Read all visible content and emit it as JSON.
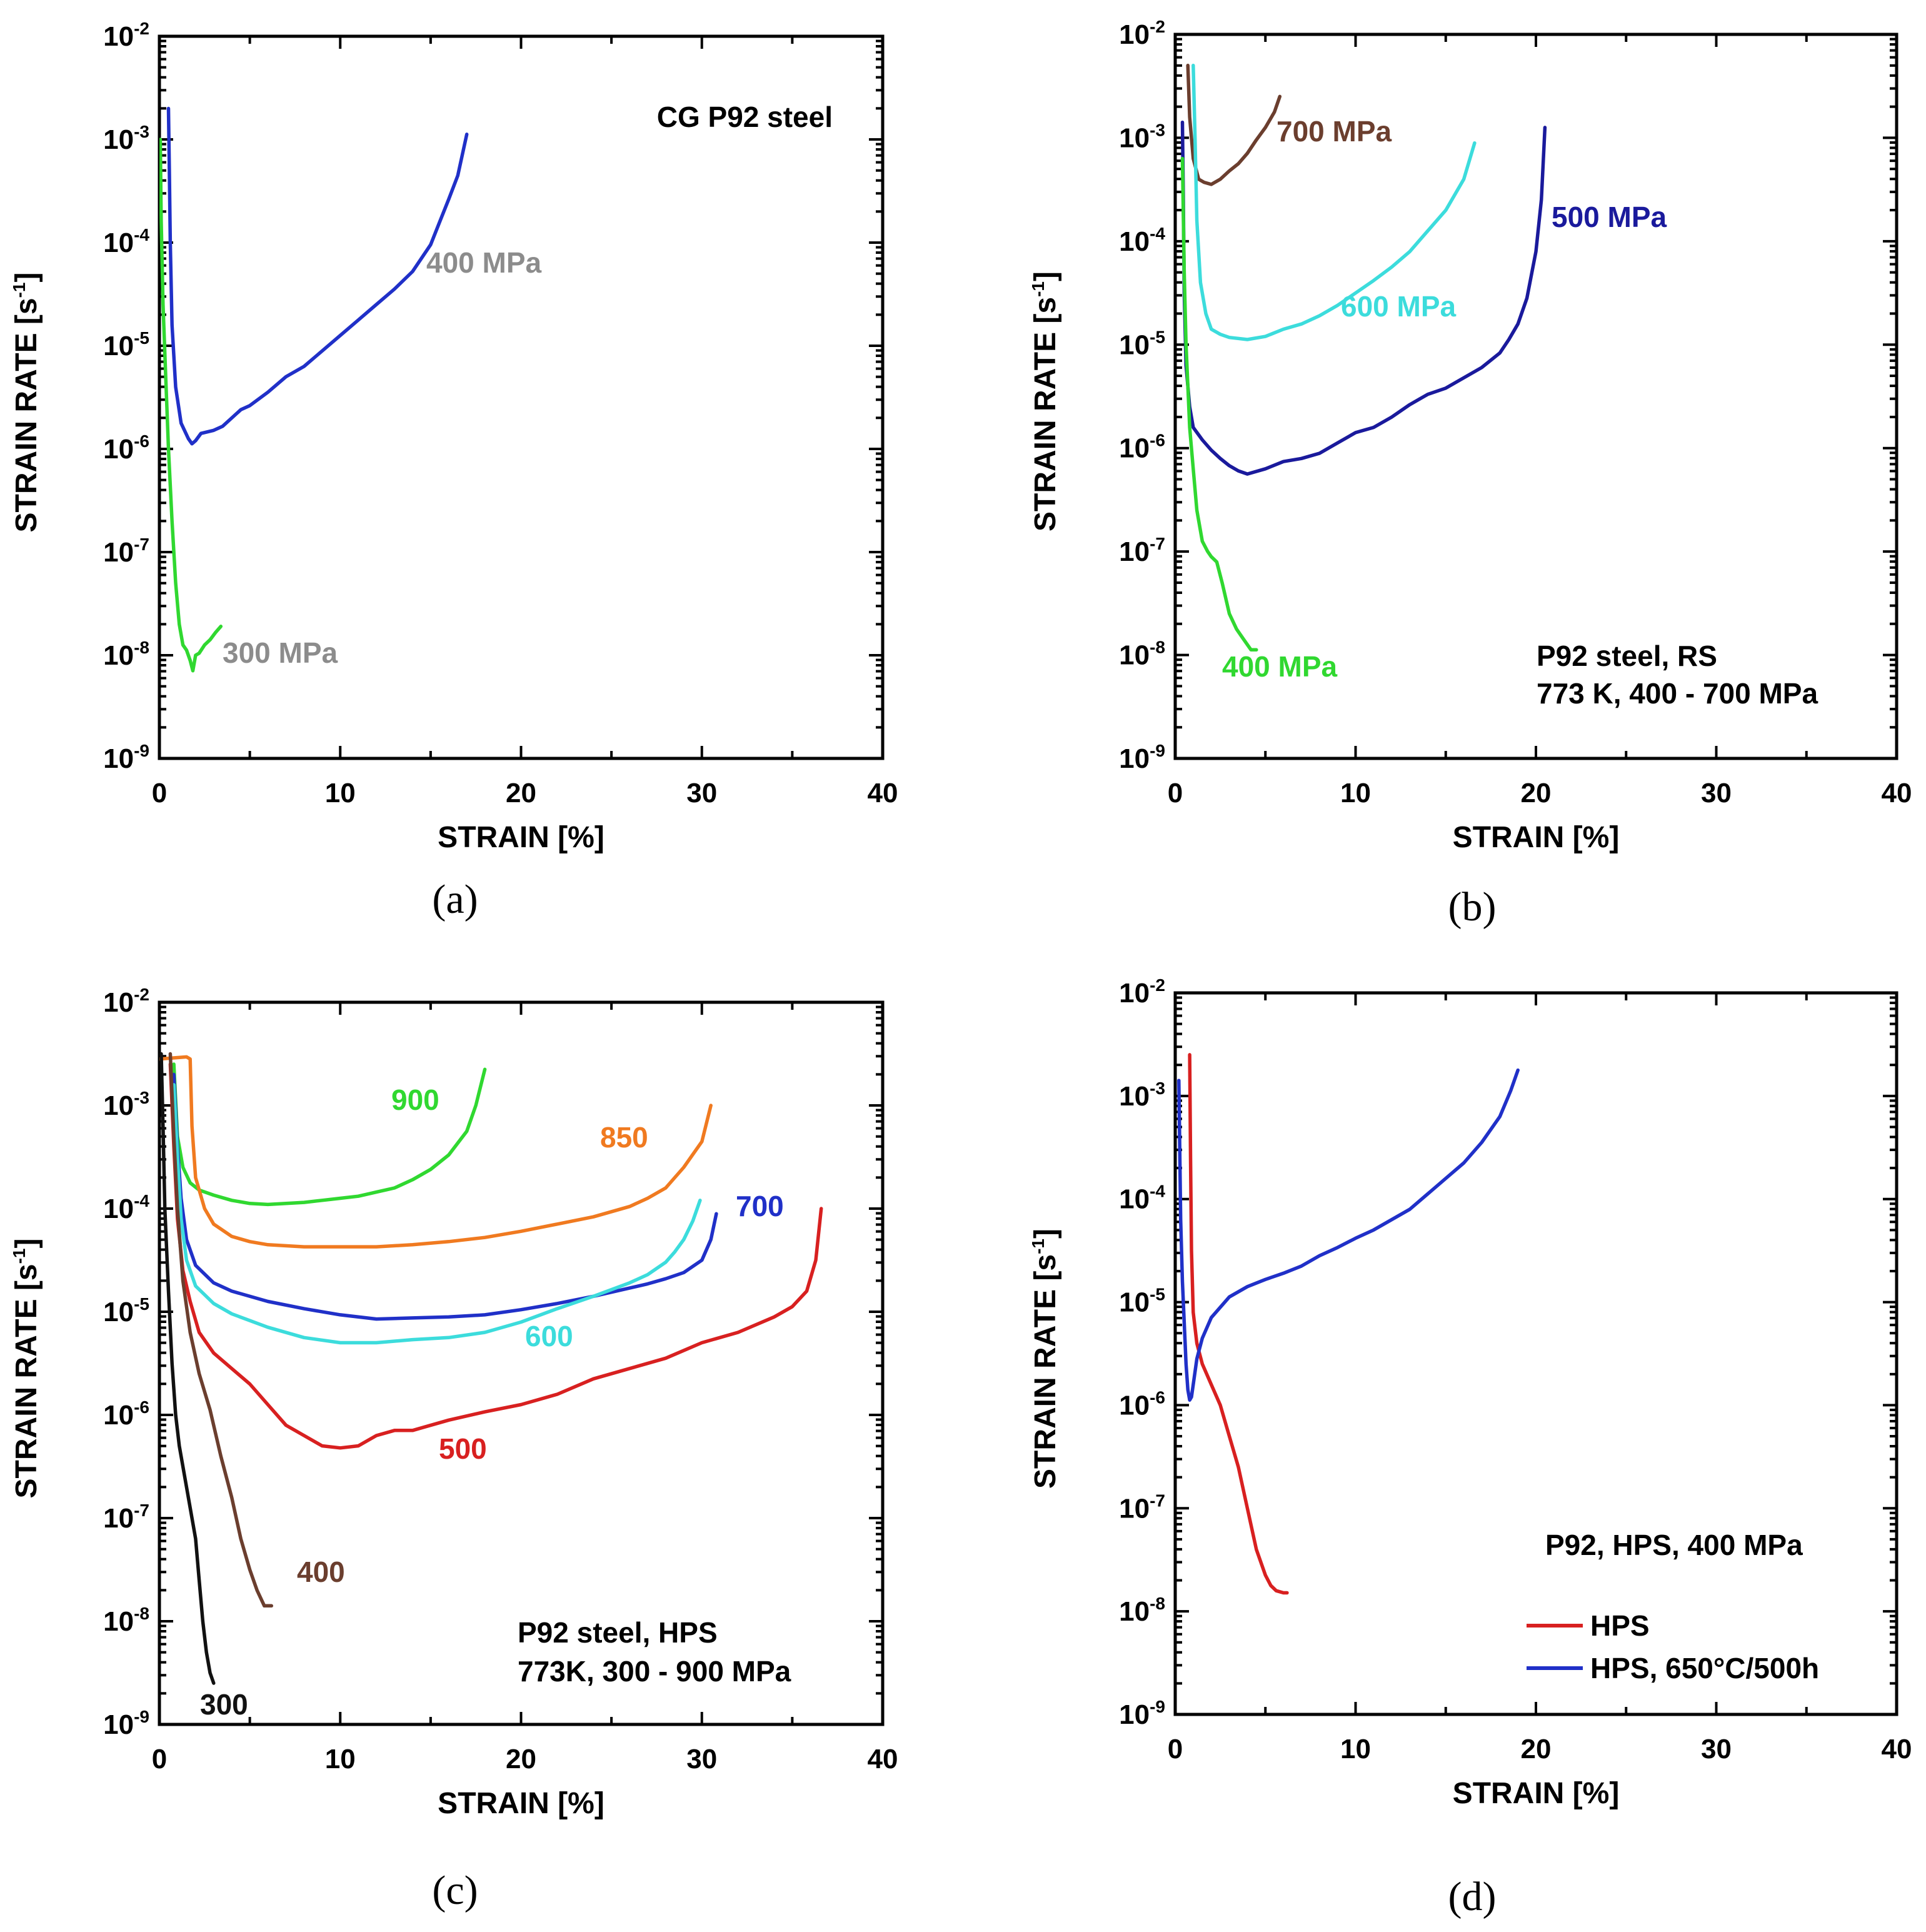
{
  "chart_data": [
    {
      "type": "line",
      "panel_label": "(a)",
      "xlabel": "STRAIN [%]",
      "ylabel_main": "STRAIN RATE [s",
      "ylabel_exp": "-1",
      "ylabel_end": "]",
      "xlim": [
        0,
        40
      ],
      "ylim_log10": [
        -9,
        -2
      ],
      "xticks": [
        0,
        10,
        20,
        30,
        40
      ],
      "yticks_log10": [
        -9,
        -8,
        -7,
        -6,
        -5,
        -4,
        -3,
        -2
      ],
      "y_tick_labels": [
        "10",
        "10",
        "10",
        "10",
        "10",
        "10",
        "10",
        "10"
      ],
      "y_tick_exponents": [
        "-9",
        "-8",
        "-7",
        "-6",
        "-5",
        "-4",
        "-3",
        "-2"
      ],
      "annotation": [
        "CG P92 steel"
      ],
      "series": [
        {
          "name": "400 MPa",
          "color": "#2030c8",
          "label": "400 MPa",
          "label_color": "#8c8c8c",
          "x": [
            0.5,
            0.55,
            0.6,
            0.7,
            0.9,
            1.2,
            1.6,
            1.8,
            2.0,
            2.3,
            3.0,
            3.5,
            4.0,
            4.5,
            5.0,
            6.0,
            7.0,
            8.0,
            9.0,
            10.0,
            11.0,
            12.0,
            13.0,
            14.0,
            15.0,
            15.5,
            16.0,
            16.5,
            17.0
          ],
          "log10y": [
            -2.7,
            -3.3,
            -4.0,
            -4.8,
            -5.4,
            -5.75,
            -5.9,
            -5.95,
            -5.92,
            -5.85,
            -5.82,
            -5.78,
            -5.7,
            -5.62,
            -5.58,
            -5.45,
            -5.3,
            -5.2,
            -5.05,
            -4.9,
            -4.75,
            -4.6,
            -4.45,
            -4.28,
            -4.02,
            -3.8,
            -3.58,
            -3.35,
            -2.95
          ]
        },
        {
          "name": "300 MPa",
          "color": "#30d830",
          "label": "300 MPa",
          "label_color": "#8c8c8c",
          "x": [
            0.05,
            0.1,
            0.2,
            0.35,
            0.5,
            0.7,
            0.9,
            1.1,
            1.3,
            1.5,
            1.7,
            1.85,
            2.0,
            2.2,
            2.5,
            2.8,
            3.1,
            3.4
          ],
          "log10y": [
            -3.0,
            -3.8,
            -4.6,
            -5.3,
            -6.0,
            -6.7,
            -7.3,
            -7.7,
            -7.9,
            -7.95,
            -8.05,
            -8.15,
            -8.0,
            -7.98,
            -7.9,
            -7.85,
            -7.78,
            -7.72
          ]
        }
      ]
    },
    {
      "type": "line",
      "panel_label": "(b)",
      "xlabel": "STRAIN [%]",
      "ylabel_main": "STRAIN RATE [s",
      "ylabel_exp": "-1",
      "ylabel_end": "]",
      "xlim": [
        0,
        40
      ],
      "ylim_log10": [
        -9,
        -2
      ],
      "xticks": [
        0,
        10,
        20,
        30,
        40
      ],
      "yticks_log10": [
        -9,
        -8,
        -7,
        -6,
        -5,
        -4,
        -3,
        -2
      ],
      "y_tick_labels": [
        "10",
        "10",
        "10",
        "10",
        "10",
        "10",
        "10",
        "10"
      ],
      "y_tick_exponents": [
        "-9",
        "-8",
        "-7",
        "-6",
        "-5",
        "-4",
        "-3",
        "-2"
      ],
      "annotation": [
        "P92 steel, RS",
        "773 K, 400 - 700 MPa"
      ],
      "series": [
        {
          "name": "700 MPa",
          "color": "#6b3e2e",
          "label": "700 MPa",
          "label_color": "#6b3e2e",
          "x": [
            0.7,
            0.8,
            1.0,
            1.3,
            1.6,
            2.0,
            2.5,
            3.0,
            3.5,
            4.0,
            4.5,
            5.0,
            5.5,
            5.8
          ],
          "log10y": [
            -2.3,
            -2.8,
            -3.2,
            -3.4,
            -3.43,
            -3.45,
            -3.4,
            -3.32,
            -3.25,
            -3.15,
            -3.02,
            -2.9,
            -2.75,
            -2.6
          ]
        },
        {
          "name": "600 MPa",
          "color": "#3cdcdc",
          "label": "600 MPa",
          "label_color": "#3cdcdc",
          "x": [
            1.0,
            1.1,
            1.2,
            1.4,
            1.7,
            2.0,
            2.5,
            3.0,
            4.0,
            5.0,
            6.0,
            7.0,
            8.0,
            9.0,
            10.0,
            11.0,
            12.0,
            13.0,
            14.0,
            15.0,
            16.0,
            16.6
          ],
          "log10y": [
            -2.3,
            -3.0,
            -3.8,
            -4.4,
            -4.7,
            -4.85,
            -4.9,
            -4.93,
            -4.95,
            -4.92,
            -4.85,
            -4.8,
            -4.72,
            -4.62,
            -4.5,
            -4.38,
            -4.25,
            -4.1,
            -3.9,
            -3.7,
            -3.4,
            -3.05
          ]
        },
        {
          "name": "500 MPa",
          "color": "#1a1a9c",
          "label": "500 MPa",
          "label_color": "#1a1a9c",
          "x": [
            0.4,
            0.45,
            0.5,
            0.6,
            0.8,
            1.0,
            1.5,
            2.0,
            2.5,
            3.0,
            3.5,
            4.0,
            5.0,
            6.0,
            7.0,
            8.0,
            9.0,
            10.0,
            11.0,
            12.0,
            13.0,
            14.0,
            15.0,
            16.0,
            17.0,
            18.0,
            18.5,
            19.0,
            19.5,
            20.0,
            20.3,
            20.5
          ],
          "log10y": [
            -2.85,
            -3.6,
            -4.5,
            -5.2,
            -5.6,
            -5.8,
            -5.92,
            -6.02,
            -6.1,
            -6.17,
            -6.22,
            -6.25,
            -6.2,
            -6.13,
            -6.1,
            -6.05,
            -5.95,
            -5.85,
            -5.8,
            -5.7,
            -5.58,
            -5.48,
            -5.42,
            -5.32,
            -5.22,
            -5.08,
            -4.95,
            -4.8,
            -4.55,
            -4.1,
            -3.6,
            -2.9
          ]
        },
        {
          "name": "400 MPa",
          "color": "#30d830",
          "label": "400 MPa",
          "label_color": "#30d830",
          "x": [
            0.4,
            0.5,
            0.6,
            0.8,
            1.0,
            1.2,
            1.5,
            1.8,
            2.0,
            2.3,
            2.6,
            3.0,
            3.4,
            3.8,
            4.2,
            4.5
          ],
          "log10y": [
            -3.2,
            -4.3,
            -5.0,
            -5.8,
            -6.2,
            -6.6,
            -6.9,
            -7.0,
            -7.05,
            -7.1,
            -7.3,
            -7.6,
            -7.75,
            -7.85,
            -7.95,
            -7.95
          ]
        }
      ]
    },
    {
      "type": "line",
      "panel_label": "(c)",
      "xlabel": "STRAIN [%]",
      "ylabel_main": "STRAIN RATE [s",
      "ylabel_exp": "-1",
      "ylabel_end": "]",
      "xlim": [
        0,
        40
      ],
      "ylim_log10": [
        -9,
        -2
      ],
      "xticks": [
        0,
        10,
        20,
        30,
        40
      ],
      "yticks_log10": [
        -9,
        -8,
        -7,
        -6,
        -5,
        -4,
        -3,
        -2
      ],
      "y_tick_labels": [
        "10",
        "10",
        "10",
        "10",
        "10",
        "10",
        "10",
        "10"
      ],
      "y_tick_exponents": [
        "-9",
        "-8",
        "-7",
        "-6",
        "-5",
        "-4",
        "-3",
        "-2"
      ],
      "annotation": [
        "P92 steel, HPS",
        "773K, 300 - 900 MPa"
      ],
      "series": [
        {
          "name": "900",
          "color": "#30d830",
          "label": "900",
          "label_color": "#30d830",
          "x": [
            0.8,
            1.0,
            1.3,
            1.7,
            2.2,
            3.0,
            4.0,
            5.0,
            6.0,
            7.0,
            8.0,
            9.0,
            10.0,
            11.0,
            12.0,
            13.0,
            14.0,
            15.0,
            16.0,
            17.0,
            17.5,
            18.0
          ],
          "log10y": [
            -2.6,
            -3.3,
            -3.6,
            -3.75,
            -3.82,
            -3.87,
            -3.92,
            -3.95,
            -3.96,
            -3.95,
            -3.94,
            -3.92,
            -3.9,
            -3.88,
            -3.84,
            -3.8,
            -3.72,
            -3.62,
            -3.48,
            -3.25,
            -3.0,
            -2.65
          ]
        },
        {
          "name": "850",
          "color": "#f07a20",
          "label": "850",
          "label_color": "#f07a20",
          "x": [
            0.0,
            1.5,
            1.7,
            1.8,
            2.0,
            2.5,
            3.0,
            4.0,
            5.0,
            6.0,
            8.0,
            10.0,
            12.0,
            14.0,
            16.0,
            18.0,
            20.0,
            22.0,
            24.0,
            26.0,
            27.0,
            28.0,
            29.0,
            30.0,
            30.5
          ],
          "log10y": [
            -2.55,
            -2.53,
            -2.55,
            -3.2,
            -3.7,
            -4.0,
            -4.15,
            -4.27,
            -4.32,
            -4.35,
            -4.37,
            -4.37,
            -4.37,
            -4.35,
            -4.32,
            -4.28,
            -4.22,
            -4.15,
            -4.08,
            -3.98,
            -3.9,
            -3.8,
            -3.6,
            -3.35,
            -3.0
          ]
        },
        {
          "name": "700",
          "color": "#2030c8",
          "label": "700",
          "label_color": "#2030c8",
          "x": [
            0.8,
            1.0,
            1.2,
            1.5,
            2.0,
            3.0,
            4.0,
            6.0,
            8.0,
            10.0,
            12.0,
            14.0,
            16.0,
            18.0,
            20.0,
            22.0,
            24.0,
            26.0,
            27.0,
            28.0,
            29.0,
            30.0,
            30.5,
            30.8
          ],
          "log10y": [
            -2.7,
            -3.4,
            -3.9,
            -4.3,
            -4.55,
            -4.72,
            -4.8,
            -4.9,
            -4.97,
            -5.03,
            -5.07,
            -5.06,
            -5.05,
            -5.03,
            -4.98,
            -4.92,
            -4.85,
            -4.77,
            -4.73,
            -4.68,
            -4.62,
            -4.5,
            -4.3,
            -4.05
          ]
        },
        {
          "name": "600",
          "color": "#3cdcdc",
          "label": "600",
          "label_color": "#3cdcdc",
          "x": [
            0.8,
            1.0,
            1.2,
            1.5,
            2.0,
            3.0,
            4.0,
            6.0,
            8.0,
            10.0,
            12.0,
            14.0,
            16.0,
            18.0,
            20.0,
            22.0,
            24.0,
            26.0,
            27.0,
            28.0,
            28.5,
            29.0,
            29.5,
            29.9
          ],
          "log10y": [
            -2.8,
            -3.5,
            -4.1,
            -4.5,
            -4.75,
            -4.92,
            -5.02,
            -5.15,
            -5.25,
            -5.3,
            -5.3,
            -5.27,
            -5.25,
            -5.2,
            -5.1,
            -4.97,
            -4.85,
            -4.72,
            -4.64,
            -4.52,
            -4.42,
            -4.3,
            -4.12,
            -3.92
          ]
        },
        {
          "name": "500",
          "color": "#d82020",
          "label": "500",
          "label_color": "#d82020",
          "x": [
            0.6,
            0.8,
            1.0,
            1.3,
            1.7,
            2.2,
            3.0,
            4.0,
            5.0,
            6.0,
            7.0,
            8.0,
            9.0,
            10.0,
            11.0,
            12.0,
            13.0,
            14.0,
            16.0,
            18.0,
            20.0,
            22.0,
            24.0,
            26.0,
            28.0,
            30.0,
            32.0,
            34.0,
            35.0,
            35.8,
            36.3,
            36.6
          ],
          "log10y": [
            -2.6,
            -3.4,
            -4.1,
            -4.6,
            -4.9,
            -5.2,
            -5.4,
            -5.55,
            -5.7,
            -5.9,
            -6.1,
            -6.2,
            -6.3,
            -6.32,
            -6.3,
            -6.2,
            -6.15,
            -6.15,
            -6.05,
            -5.97,
            -5.9,
            -5.8,
            -5.65,
            -5.55,
            -5.45,
            -5.3,
            -5.2,
            -5.05,
            -4.95,
            -4.8,
            -4.5,
            -4.0
          ]
        },
        {
          "name": "400",
          "color": "#6b3e2e",
          "label": "400",
          "label_color": "#6b3e2e",
          "x": [
            0.6,
            0.8,
            1.0,
            1.3,
            1.7,
            2.2,
            2.8,
            3.4,
            4.0,
            4.5,
            5.0,
            5.4,
            5.8,
            6.2
          ],
          "log10y": [
            -2.5,
            -3.3,
            -4.0,
            -4.7,
            -5.2,
            -5.6,
            -5.95,
            -6.4,
            -6.8,
            -7.2,
            -7.5,
            -7.7,
            -7.85,
            -7.85
          ]
        },
        {
          "name": "300",
          "color": "#111111",
          "label": "300",
          "label_color": "#111111",
          "x": [
            0.1,
            0.2,
            0.3,
            0.5,
            0.7,
            0.9,
            1.1,
            1.4,
            1.7,
            2.0,
            2.2,
            2.4,
            2.6,
            2.8,
            3.0
          ],
          "log10y": [
            -2.5,
            -3.2,
            -4.0,
            -4.8,
            -5.5,
            -6.0,
            -6.3,
            -6.6,
            -6.9,
            -7.2,
            -7.6,
            -8.0,
            -8.3,
            -8.5,
            -8.6
          ]
        }
      ]
    },
    {
      "type": "line",
      "panel_label": "(d)",
      "xlabel": "STRAIN [%]",
      "ylabel_main": "STRAIN RATE [s",
      "ylabel_exp": "-1",
      "ylabel_end": "]",
      "xlim": [
        0,
        40
      ],
      "ylim_log10": [
        -9,
        -2
      ],
      "xticks": [
        0,
        10,
        20,
        30,
        40
      ],
      "yticks_log10": [
        -9,
        -8,
        -7,
        -6,
        -5,
        -4,
        -3,
        -2
      ],
      "y_tick_labels": [
        "10",
        "10",
        "10",
        "10",
        "10",
        "10",
        "10",
        "10"
      ],
      "y_tick_exponents": [
        "-9",
        "-8",
        "-7",
        "-6",
        "-5",
        "-4",
        "-3",
        "-2"
      ],
      "annotation": [
        "P92, HPS, 400 MPa"
      ],
      "legend": [
        {
          "label": "HPS",
          "color": "#d82020"
        },
        {
          "label": "HPS, 650°C/500h",
          "color": "#2030c8"
        }
      ],
      "series": [
        {
          "name": "HPS",
          "color": "#d82020",
          "x": [
            0.8,
            0.85,
            0.9,
            1.0,
            1.2,
            1.5,
            2.0,
            2.5,
            3.0,
            3.5,
            4.0,
            4.5,
            5.0,
            5.3,
            5.6,
            6.0,
            6.2
          ],
          "log10y": [
            -2.6,
            -3.6,
            -4.5,
            -5.1,
            -5.4,
            -5.6,
            -5.8,
            -6.0,
            -6.3,
            -6.6,
            -7.0,
            -7.4,
            -7.65,
            -7.75,
            -7.8,
            -7.82,
            -7.82
          ]
        },
        {
          "name": "HPS, 650°C/500h",
          "color": "#2030c8",
          "x": [
            0.2,
            0.25,
            0.3,
            0.4,
            0.5,
            0.6,
            0.7,
            0.8,
            0.9,
            1.0,
            1.2,
            1.5,
            2.0,
            3.0,
            4.0,
            5.0,
            6.0,
            7.0,
            8.0,
            9.0,
            10.0,
            11.0,
            12.0,
            13.0,
            14.0,
            15.0,
            16.0,
            17.0,
            18.0,
            18.6,
            19.0
          ],
          "log10y": [
            -2.85,
            -3.5,
            -4.2,
            -4.8,
            -5.2,
            -5.6,
            -5.85,
            -5.95,
            -5.92,
            -5.8,
            -5.55,
            -5.35,
            -5.15,
            -4.95,
            -4.85,
            -4.78,
            -4.72,
            -4.65,
            -4.55,
            -4.47,
            -4.38,
            -4.3,
            -4.2,
            -4.1,
            -3.95,
            -3.8,
            -3.65,
            -3.45,
            -3.2,
            -2.95,
            -2.75
          ]
        }
      ]
    }
  ]
}
